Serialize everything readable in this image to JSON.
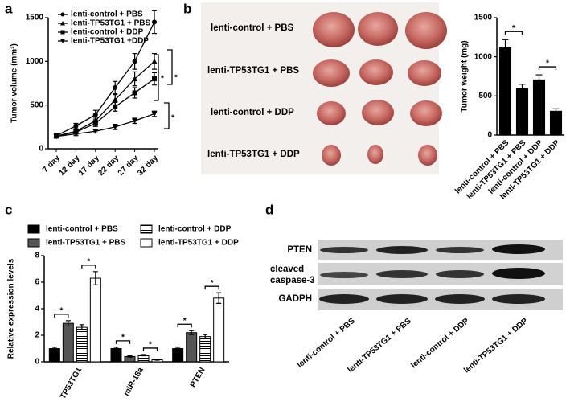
{
  "panel_labels": [
    "a",
    "b",
    "c",
    "d"
  ],
  "chart_data": [
    {
      "type": "line",
      "ylabel": "Tumor volume (mm³)",
      "categories": [
        "7 day",
        "12 day",
        "17 day",
        "22 day",
        "27 day",
        "32 day"
      ],
      "series": [
        {
          "name": "lenti-control + PBS",
          "color": "#000000",
          "marker": "circle",
          "values": [
            150,
            260,
            390,
            700,
            1000,
            1450
          ],
          "errors": [
            20,
            30,
            50,
            70,
            90,
            130
          ]
        },
        {
          "name": "lenti-TP53TG1 + PBS",
          "color": "#000000",
          "marker": "triangle",
          "values": [
            145,
            200,
            320,
            560,
            800,
            1000
          ],
          "errors": [
            20,
            25,
            40,
            60,
            80,
            90
          ]
        },
        {
          "name": "lenti-control + DDP",
          "color": "#000000",
          "marker": "square",
          "values": [
            145,
            190,
            290,
            480,
            640,
            800
          ],
          "errors": [
            15,
            25,
            35,
            50,
            60,
            70
          ]
        },
        {
          "name": "lenti-TP53TG1 +DDP",
          "color": "#000000",
          "marker": "triangle-down",
          "values": [
            140,
            170,
            200,
            250,
            320,
            400
          ],
          "errors": [
            15,
            20,
            20,
            30,
            30,
            30
          ]
        }
      ],
      "ylim": [
        0,
        1500
      ],
      "yticks": [
        0,
        500,
        1000,
        1500
      ],
      "annotations": [
        "*",
        "*",
        "*"
      ]
    },
    {
      "type": "bar",
      "ylabel": "Tumor weight (mg)",
      "categories": [
        "lenti-control + PBS",
        "lenti-TP53TG1 + PBS",
        "lenti-control + DDP",
        "lenti-TP53TG1 + DDP"
      ],
      "values": [
        1120,
        600,
        710,
        310
      ],
      "errors": [
        100,
        50,
        60,
        25
      ],
      "color": "#000000",
      "ylim": [
        0,
        1500
      ],
      "yticks": [
        0,
        500,
        1000,
        1500
      ],
      "annotations": [
        "*",
        "*"
      ]
    },
    {
      "type": "grouped-bar",
      "ylabel": "Relative expression levels",
      "categories": [
        "TP53TG1",
        "miR-18a",
        "PTEN"
      ],
      "series": [
        {
          "name": "lenti-control + PBS",
          "color": "#000000",
          "hatch": false,
          "values": [
            1.0,
            1.0,
            1.0
          ],
          "errors": [
            0.1,
            0.1,
            0.1
          ]
        },
        {
          "name": "lenti-TP53TG1 + PBS",
          "color": "#555555",
          "hatch": false,
          "values": [
            2.9,
            0.4,
            2.2
          ],
          "errors": [
            0.2,
            0.05,
            0.15
          ]
        },
        {
          "name": "lenti-control + DDP",
          "color": "#ffffff",
          "hatch": true,
          "values": [
            2.6,
            0.5,
            1.9
          ],
          "errors": [
            0.2,
            0.05,
            0.15
          ]
        },
        {
          "name": "lenti-TP53TG1 + DDP",
          "color": "#ffffff",
          "hatch": false,
          "values": [
            6.3,
            0.15,
            4.8
          ],
          "errors": [
            0.5,
            0.03,
            0.4
          ]
        }
      ],
      "ylim": [
        0,
        8
      ],
      "yticks": [
        0,
        2,
        4,
        6,
        8
      ],
      "annotations": [
        "*",
        "*",
        "*",
        "*",
        "*",
        "*"
      ]
    }
  ],
  "tumor_photo": {
    "row_labels": [
      "lenti-control + PBS",
      "lenti-TP53TG1 + PBS",
      "lenti-control + DDP",
      "lenti-TP53TG1 + DDP"
    ]
  },
  "western_blot": {
    "row_labels": [
      "PTEN",
      "cleaved",
      "caspase-3",
      "GADPH"
    ],
    "column_labels": [
      "lenti-control + PBS",
      "lenti-TP53TG1 + PBS",
      "lenti-control + DDP",
      "lenti-TP53TG1 + DDP"
    ]
  }
}
